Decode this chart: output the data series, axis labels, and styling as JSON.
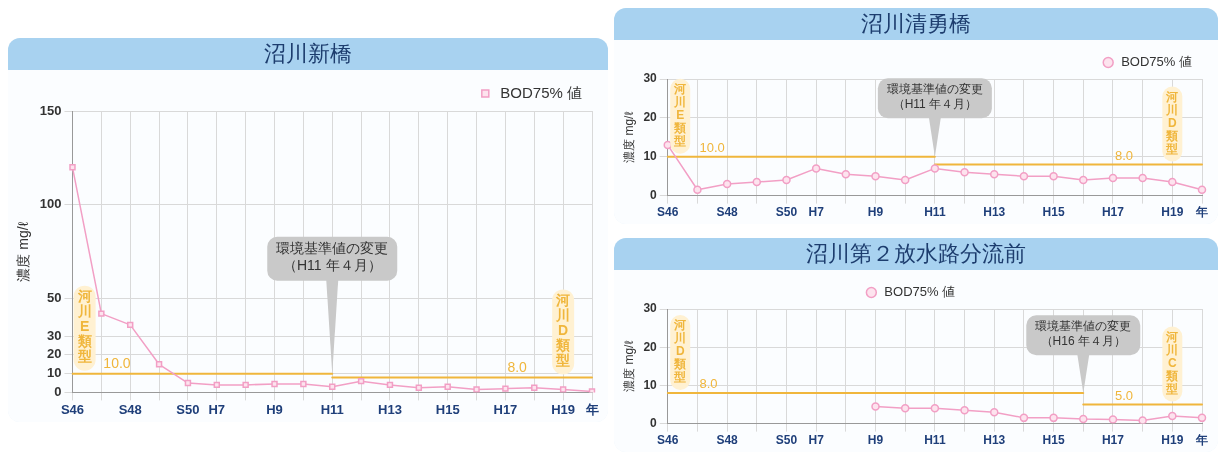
{
  "chart_data": [
    {
      "type": "line",
      "title": "沼川新橋",
      "ylabel": "濃度 mg/ℓ",
      "categories": [
        "S46",
        null,
        "S48",
        null,
        "S50",
        "H7",
        null,
        "H9",
        null,
        "H11",
        null,
        "H13",
        null,
        "H15",
        null,
        "H17",
        null,
        "H19",
        "年"
      ],
      "marker": "square",
      "grid": true,
      "legend": "top right",
      "ylim": [
        0,
        150
      ],
      "yticks": [
        0,
        10,
        20,
        30,
        50,
        100,
        150
      ],
      "series": [
        {
          "name": "BOD75% 値",
          "color": "#f29fc5",
          "values": [
            120,
            42,
            36,
            15,
            5,
            4,
            4,
            4.5,
            4.5,
            3,
            6,
            4,
            2.5,
            3,
            1.5,
            2,
            2.5,
            1.5,
            0.5
          ]
        },
        {
          "name": "河川E類型",
          "color": "#f0b63c",
          "marker": "none",
          "values": [
            10,
            10,
            10,
            10,
            10,
            10,
            10,
            10,
            10,
            10,
            null,
            null,
            null,
            null,
            null,
            null,
            null,
            null,
            null
          ],
          "value_labels": [
            null,
            "10.0",
            null,
            null,
            null,
            null,
            null,
            null,
            null,
            null,
            null,
            null,
            null,
            null,
            null,
            null,
            null,
            null,
            null
          ]
        },
        {
          "name": "河川D類型",
          "color": "#f0b63c",
          "marker": "none",
          "values": [
            null,
            null,
            null,
            null,
            null,
            null,
            null,
            null,
            null,
            8,
            8,
            8,
            8,
            8,
            8,
            8,
            8,
            8,
            8
          ],
          "value_labels": [
            null,
            null,
            null,
            null,
            null,
            null,
            null,
            null,
            null,
            null,
            null,
            null,
            null,
            null,
            null,
            "8.0",
            null,
            null,
            null
          ]
        }
      ],
      "annotations": [
        {
          "text": "環境基準値の変更（H11 年４月）",
          "x": "H11",
          "y": 10
        }
      ]
    },
    {
      "type": "line",
      "title": "沼川清勇橋",
      "ylabel": "濃度 mg/ℓ",
      "categories": [
        "S46",
        null,
        "S48",
        null,
        "S50",
        "H7",
        null,
        "H9",
        null,
        "H11",
        null,
        "H13",
        null,
        "H15",
        null,
        "H17",
        null,
        "H19",
        "年"
      ],
      "marker": "circle",
      "grid": true,
      "legend": "top right",
      "ylim": [
        0,
        30
      ],
      "yticks": [
        0,
        10,
        20,
        30
      ],
      "series": [
        {
          "name": "BOD75% 値",
          "color": "#f29fc5",
          "values": [
            13,
            1.5,
            3,
            3.5,
            4,
            7,
            5.5,
            5,
            4,
            7,
            6,
            5.5,
            5,
            5,
            4,
            4.5,
            4.5,
            3.5,
            1.5
          ]
        },
        {
          "name": "河川E類型",
          "color": "#f0b63c",
          "marker": "none",
          "values": [
            10,
            10,
            10,
            10,
            10,
            10,
            10,
            10,
            10,
            10,
            null,
            null,
            null,
            null,
            null,
            null,
            null,
            null,
            null
          ],
          "value_labels": [
            null,
            "10.0",
            null,
            null,
            null,
            null,
            null,
            null,
            null,
            null,
            null,
            null,
            null,
            null,
            null,
            null,
            null,
            null,
            null
          ]
        },
        {
          "name": "河川D類型",
          "color": "#f0b63c",
          "marker": "none",
          "values": [
            null,
            null,
            null,
            null,
            null,
            null,
            null,
            null,
            null,
            8,
            8,
            8,
            8,
            8,
            8,
            8,
            8,
            8,
            8
          ],
          "value_labels": [
            null,
            null,
            null,
            null,
            null,
            null,
            null,
            null,
            null,
            null,
            null,
            null,
            null,
            null,
            null,
            "8.0",
            null,
            null,
            null
          ]
        }
      ],
      "annotations": [
        {
          "text": "環境基準値の変更（H11 年４月）",
          "x": "H11",
          "y": 10
        }
      ]
    },
    {
      "type": "line",
      "title": "沼川第２放水路分流前",
      "ylabel": "濃度 mg/ℓ",
      "categories": [
        "S46",
        null,
        "S48",
        null,
        "S50",
        "H7",
        null,
        "H9",
        null,
        "H11",
        null,
        "H13",
        null,
        "H15",
        null,
        "H17",
        null,
        "H19",
        "年"
      ],
      "marker": "circle",
      "grid": true,
      "legend": "top",
      "ylim": [
        0,
        30
      ],
      "yticks": [
        0,
        10,
        20,
        30
      ],
      "series": [
        {
          "name": "BOD75% 値",
          "color": "#f29fc5",
          "values": [
            null,
            null,
            null,
            null,
            null,
            null,
            null,
            4.5,
            4,
            4,
            3.5,
            3,
            1.5,
            1.5,
            1.2,
            1.1,
            0.8,
            2,
            1.5
          ]
        },
        {
          "name": "河川D類型",
          "color": "#f0b63c",
          "marker": "none",
          "values": [
            8,
            8,
            8,
            8,
            8,
            8,
            8,
            8,
            8,
            8,
            8,
            8,
            8,
            8,
            8,
            null,
            null,
            null,
            null
          ],
          "value_labels": [
            null,
            "8.0",
            null,
            null,
            null,
            null,
            null,
            null,
            null,
            null,
            null,
            null,
            null,
            null,
            null,
            null,
            null,
            null,
            null
          ]
        },
        {
          "name": "河川C類型",
          "color": "#f0b63c",
          "marker": "none",
          "values": [
            null,
            null,
            null,
            null,
            null,
            null,
            null,
            null,
            null,
            null,
            null,
            null,
            null,
            null,
            5,
            5,
            5,
            5,
            5
          ],
          "value_labels": [
            null,
            null,
            null,
            null,
            null,
            null,
            null,
            null,
            null,
            null,
            null,
            null,
            null,
            null,
            null,
            "5.0",
            null,
            null,
            null
          ]
        }
      ],
      "annotations": [
        {
          "text": "環境基準値の変更（H16 年４月）",
          "y": 8
        }
      ]
    }
  ]
}
